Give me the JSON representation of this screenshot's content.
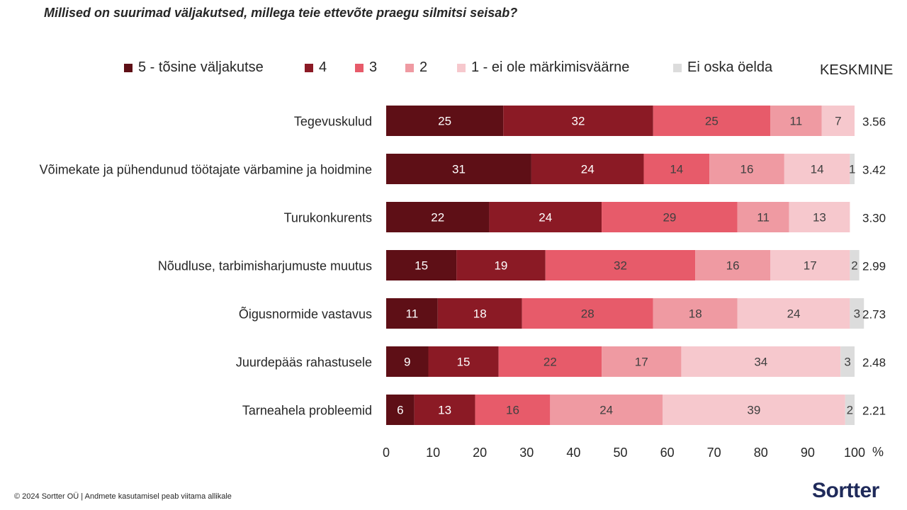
{
  "title": "Millised on suurimad väljakutsed, millega teie ettevõte praegu silmitsi seisab?",
  "legend": [
    {
      "label": "5 - tõsine väljakutse",
      "color": "#5e0f16"
    },
    {
      "label": "4",
      "color": "#8b1a25"
    },
    {
      "label": "3",
      "color": "#e75b6a"
    },
    {
      "label": "2",
      "color": "#ef9aa2"
    },
    {
      "label": "1 - ei ole märkimisväärne",
      "color": "#f6c8cd"
    },
    {
      "label": "Ei oska öelda",
      "color": "#dcdcdc"
    }
  ],
  "avg_header": "KESKMINE",
  "chart_data": {
    "type": "bar",
    "orientation": "horizontal",
    "stacked": true,
    "title": "Millised on suurimad väljakutsed, millega teie ettevõte praegu silmitsi seisab?",
    "categories": [
      "Tegevuskulud",
      "Võimekate ja pühendunud töötajate värbamine ja hoidmine",
      "Turukonkurents",
      "Nõudluse, tarbimisharjumuste muutus",
      "Õigusnormide vastavus",
      "Juurdepääs rahastusele",
      "Tarneahela probleemid"
    ],
    "series": [
      {
        "name": "5 - tõsine väljakutse",
        "values": [
          25,
          31,
          22,
          15,
          11,
          9,
          6
        ]
      },
      {
        "name": "4",
        "values": [
          32,
          24,
          24,
          19,
          18,
          15,
          13
        ]
      },
      {
        "name": "3",
        "values": [
          25,
          14,
          29,
          32,
          28,
          22,
          16
        ]
      },
      {
        "name": "2",
        "values": [
          11,
          16,
          11,
          16,
          18,
          17,
          24
        ]
      },
      {
        "name": "1 - ei ole märkimisväärne",
        "values": [
          7,
          14,
          13,
          17,
          24,
          34,
          39
        ]
      },
      {
        "name": "Ei oska öelda",
        "values": [
          0,
          1,
          0,
          2,
          3,
          3,
          2
        ]
      }
    ],
    "averages": [
      "3.56",
      "3.42",
      "3.30",
      "2.99",
      "2.73",
      "2.48",
      "2.21"
    ],
    "xlim": [
      0,
      100
    ],
    "xticks": [
      0,
      10,
      20,
      30,
      40,
      50,
      60,
      70,
      80,
      90,
      100
    ],
    "xlabel": "%",
    "legend_position": "top"
  },
  "footer": "© 2024 Sortter OÜ | Andmete kasutamisel peab viitama allikale",
  "logo": "Sortter"
}
